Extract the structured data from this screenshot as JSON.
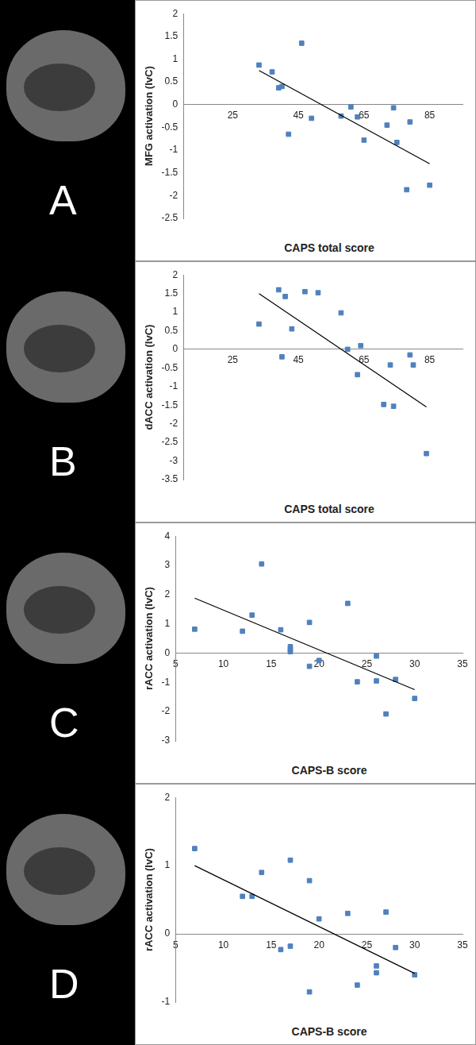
{
  "chart_data": [
    {
      "type": "scatter",
      "annotation": "A",
      "x_label": "CAPS total score",
      "y_label": "MFG activation (IvC)",
      "xlim": [
        10,
        95
      ],
      "xticks": [
        25,
        45,
        65,
        85
      ],
      "ylim": [
        -2.5,
        2
      ],
      "yticks": [
        -2.5,
        -2,
        -1.5,
        -1,
        -0.5,
        0,
        0.5,
        1,
        1.5,
        2
      ],
      "grid": false,
      "series": [
        {
          "type": "scatter",
          "marker": "square",
          "color": "#4f81bd",
          "x": [
            33,
            37,
            39,
            40,
            42,
            46,
            49,
            58,
            61,
            63,
            65,
            72,
            74,
            75,
            79,
            78,
            85
          ],
          "values": [
            0.87,
            0.72,
            0.37,
            0.4,
            -0.65,
            1.35,
            -0.3,
            -0.25,
            -0.05,
            -0.27,
            -0.78,
            -0.45,
            -0.07,
            -0.83,
            -0.38,
            -1.87,
            -1.77
          ]
        },
        {
          "type": "line",
          "line_style": "solid",
          "color": "#000000",
          "x": [
            33,
            85
          ],
          "values": [
            0.75,
            -1.3
          ]
        }
      ]
    },
    {
      "type": "scatter",
      "annotation": "B",
      "x_label": "CAPS total score",
      "y_label": "dACC activation (IvC)",
      "xlim": [
        10,
        95
      ],
      "xticks": [
        25,
        45,
        65,
        85
      ],
      "ylim": [
        -3.5,
        2
      ],
      "yticks": [
        -3.5,
        -3,
        -2.5,
        -2,
        -1.5,
        -1,
        -0.5,
        0,
        0.5,
        1,
        1.5,
        2
      ],
      "grid": false,
      "series": [
        {
          "type": "scatter",
          "marker": "square",
          "color": "#4f81bd",
          "x": [
            33,
            39,
            40,
            41,
            43,
            47,
            51,
            58,
            60,
            63,
            64,
            71,
            73,
            74,
            79,
            80,
            84
          ],
          "values": [
            0.68,
            1.6,
            -0.2,
            1.42,
            0.55,
            1.55,
            1.52,
            0.98,
            0,
            -0.68,
            0.1,
            -1.48,
            -0.42,
            -1.53,
            -0.15,
            -0.42,
            -2.8
          ]
        },
        {
          "type": "line",
          "line_style": "solid",
          "color": "#000000",
          "x": [
            33,
            84
          ],
          "values": [
            1.5,
            -1.55
          ]
        }
      ]
    },
    {
      "type": "scatter",
      "annotation": "C",
      "x_label": "CAPS-B score",
      "y_label": "rACC activation (IvC)",
      "xlim": [
        5,
        35
      ],
      "xticks": [
        5,
        10,
        15,
        20,
        25,
        30,
        35
      ],
      "ylim": [
        -3,
        4
      ],
      "yticks": [
        -3,
        -2,
        -1,
        0,
        1,
        2,
        3,
        4
      ],
      "grid": false,
      "series": [
        {
          "type": "scatter",
          "marker": "square",
          "color": "#4f81bd",
          "x": [
            7,
            12,
            13,
            14,
            16,
            17,
            17,
            17,
            19,
            19,
            20,
            23,
            24,
            26,
            26,
            27,
            28,
            30
          ],
          "values": [
            0.82,
            0.75,
            1.3,
            3.05,
            0.8,
            0.22,
            0.05,
            0.12,
            1.05,
            -0.45,
            -0.25,
            1.7,
            -0.98,
            -0.1,
            -0.95,
            -2.08,
            -0.9,
            -1.55
          ]
        },
        {
          "type": "line",
          "line_style": "solid",
          "color": "#000000",
          "x": [
            7,
            30
          ],
          "values": [
            1.88,
            -1.25
          ]
        }
      ]
    },
    {
      "type": "scatter",
      "annotation": "D",
      "x_label": "CAPS-B score",
      "y_label": "rACC activation (IvC)",
      "xlim": [
        5,
        35
      ],
      "xticks": [
        5,
        10,
        15,
        20,
        25,
        30,
        35
      ],
      "ylim": [
        -1,
        2
      ],
      "yticks": [
        -1,
        0,
        1,
        2
      ],
      "grid": false,
      "series": [
        {
          "type": "scatter",
          "marker": "square",
          "color": "#4f81bd",
          "x": [
            7,
            12,
            13,
            14,
            16,
            17,
            17,
            19,
            19,
            20,
            23,
            24,
            26,
            26,
            27,
            28,
            30
          ],
          "values": [
            1.25,
            0.55,
            0.55,
            0.9,
            -0.23,
            1.08,
            -0.18,
            0.78,
            -0.85,
            0.22,
            0.3,
            -0.75,
            -0.47,
            -0.57,
            0.32,
            -0.2,
            -0.6
          ]
        },
        {
          "type": "line",
          "line_style": "solid",
          "color": "#000000",
          "x": [
            7,
            30
          ],
          "values": [
            1.0,
            -0.58
          ]
        }
      ]
    }
  ]
}
